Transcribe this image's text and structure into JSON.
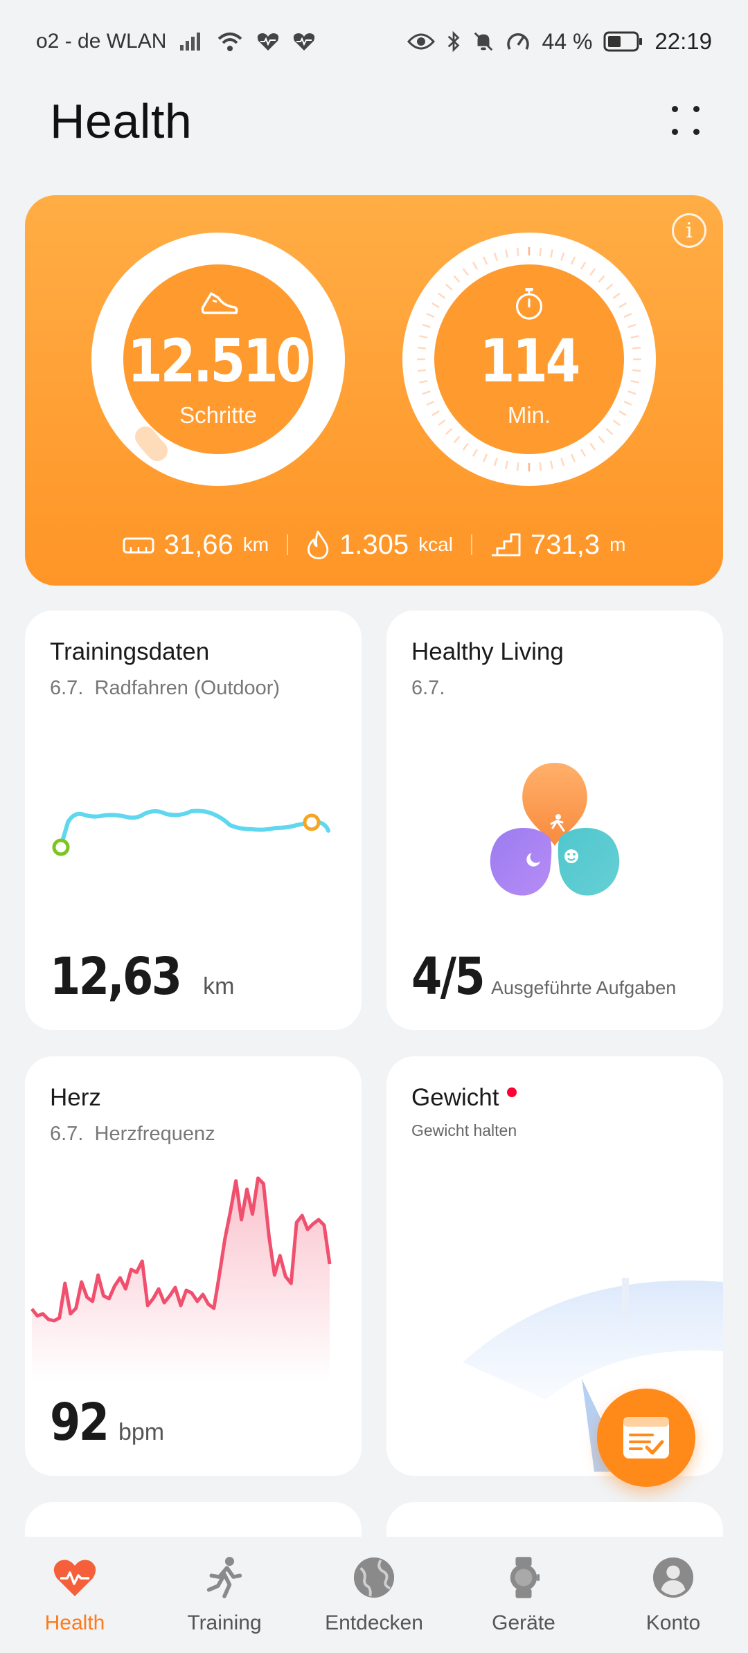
{
  "status_bar": {
    "carrier": "o2 - de WLAN",
    "battery": "44 %",
    "time": "22:19"
  },
  "header": {
    "title": "Health"
  },
  "activity": {
    "steps": {
      "value": "12.510",
      "label": "Schritte"
    },
    "minutes": {
      "value": "114",
      "label": "Min."
    },
    "distance": {
      "value": "31,66",
      "unit": "km"
    },
    "calories": {
      "value": "1.305",
      "unit": "kcal"
    },
    "climb": {
      "value": "731,3",
      "unit": "m"
    }
  },
  "cards": {
    "training": {
      "title": "Trainingsdaten",
      "date": "6.7.",
      "activity": "Radfahren (Outdoor)",
      "value": "12,63",
      "unit": "km"
    },
    "healthy": {
      "title": "Healthy Living",
      "date": "6.7.",
      "value": "4/5",
      "unit": "Ausgeführte Aufgaben"
    },
    "heart": {
      "title": "Herz",
      "date": "6.7.",
      "metric": "Herzfrequenz",
      "value": "92",
      "unit": "bpm"
    },
    "weight": {
      "title": "Gewicht",
      "subtitle": "Gewicht halten"
    }
  },
  "bottom_nav": {
    "items": [
      {
        "label": "Health",
        "icon": "heart-icon"
      },
      {
        "label": "Training",
        "icon": "runner-icon"
      },
      {
        "label": "Entdecken",
        "icon": "globe-icon"
      },
      {
        "label": "Geräte",
        "icon": "watch-icon"
      },
      {
        "label": "Konto",
        "icon": "person-icon"
      }
    ]
  },
  "colors": {
    "accent": "#ff8a1a",
    "heart_line": "#f0506e",
    "route": "#5fd7ee"
  }
}
